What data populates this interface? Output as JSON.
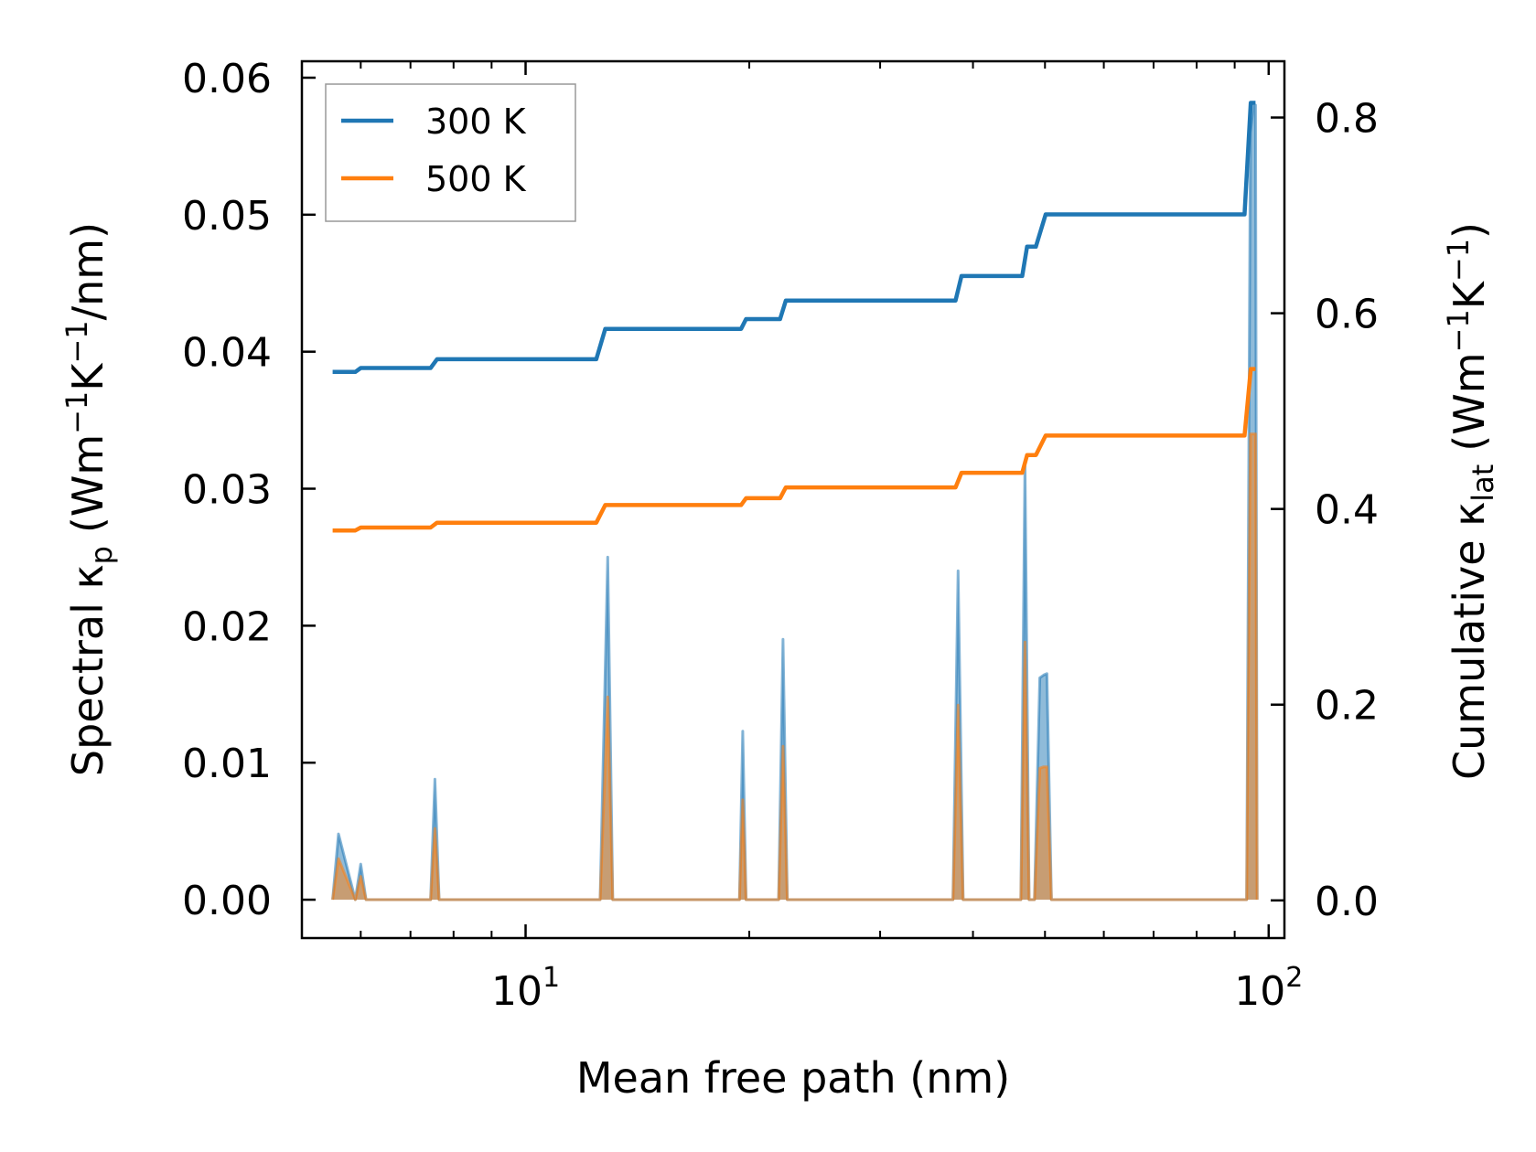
{
  "chart_data": {
    "type": "line",
    "xscale": "log",
    "xlabel": "Mean free path (nm)",
    "ylabel_left": "Spectral κ",
    "ylabel_left_sub": "p",
    "ylabel_left_units": "(Wm",
    "ylabel_left_exp1": "−1",
    "ylabel_left_mid": "K",
    "ylabel_left_exp2": "−1",
    "ylabel_left_tail": "/nm)",
    "ylabel_right": "Cumulative κ",
    "ylabel_right_sub": "lat",
    "ylabel_right_units": "(Wm",
    "ylabel_right_exp1": "−1",
    "ylabel_right_mid": "K",
    "ylabel_right_exp2": "−1",
    "ylabel_right_tail": ")",
    "xlim": [
      5.0,
      105.0
    ],
    "ylim_left": [
      -0.0028,
      0.0612
    ],
    "ylim_right": [
      -0.0385,
      0.8575
    ],
    "xticks": [
      {
        "base": "10",
        "exp": "1",
        "value": 10
      },
      {
        "base": "10",
        "exp": "2",
        "value": 100
      }
    ],
    "yticks_left": [
      "0.00",
      "0.01",
      "0.02",
      "0.03",
      "0.04",
      "0.05",
      "0.06"
    ],
    "yticks_left_values": [
      0.0,
      0.01,
      0.02,
      0.03,
      0.04,
      0.05,
      0.06
    ],
    "yticks_right": [
      "0.0",
      "0.2",
      "0.4",
      "0.6",
      "0.8"
    ],
    "yticks_right_values": [
      0.0,
      0.2,
      0.4,
      0.6,
      0.8
    ],
    "legend": {
      "position": "upper-left",
      "entries": [
        {
          "label": "300 K",
          "color": "#1f77b4"
        },
        {
          "label": "500 K",
          "color": "#ff7f0e"
        }
      ]
    },
    "series": [
      {
        "name": "300 K spectral",
        "axis": "left",
        "style": "fill",
        "color": "#1f77b4",
        "x": [
          5.5,
          5.6,
          5.9,
          6.0,
          6.1,
          7.45,
          7.55,
          7.65,
          12.3,
          12.6,
          12.9,
          13.1,
          19.4,
          19.6,
          19.8,
          21.9,
          22.2,
          22.5,
          37.6,
          38.2,
          38.8,
          46.4,
          47.0,
          47.6,
          48.4,
          49.2,
          49.8,
          50.3,
          51.0,
          93.4,
          94.5,
          95.4,
          96.0,
          96.5
        ],
        "y": [
          0.0,
          0.0048,
          0.0,
          0.0026,
          0.0,
          0.0,
          0.0088,
          0.0,
          0.0,
          0.0,
          0.025,
          0.0,
          0.0,
          0.0123,
          0.0,
          0.0,
          0.019,
          0.0,
          0.0,
          0.024,
          0.0,
          0.0,
          0.032,
          0.0,
          0.0,
          0.0162,
          0.0164,
          0.0165,
          0.0,
          0.0,
          0.056,
          0.058,
          0.058,
          0.0
        ]
      },
      {
        "name": "500 K spectral",
        "axis": "left",
        "style": "fill",
        "color": "#ff7f0e",
        "x": [
          5.5,
          5.6,
          5.9,
          6.0,
          6.1,
          7.45,
          7.55,
          7.65,
          12.3,
          12.6,
          12.9,
          13.1,
          19.4,
          19.6,
          19.8,
          21.9,
          22.2,
          22.5,
          37.6,
          38.2,
          38.8,
          46.4,
          47.0,
          47.6,
          48.4,
          49.2,
          49.8,
          50.3,
          51.0,
          93.4,
          94.5,
          95.4,
          96.0,
          96.5
        ],
        "y": [
          0.0,
          0.003,
          0.0,
          0.0017,
          0.0,
          0.0,
          0.0052,
          0.0,
          0.0,
          0.0,
          0.0148,
          0.0,
          0.0,
          0.0073,
          0.0,
          0.0,
          0.0112,
          0.0,
          0.0,
          0.0142,
          0.0,
          0.0,
          0.0188,
          0.0,
          0.0,
          0.0096,
          0.0097,
          0.0097,
          0.0,
          0.0,
          0.034,
          0.034,
          0.034,
          0.0
        ]
      },
      {
        "name": "300 K",
        "axis": "right",
        "style": "line",
        "color": "#1f77b4",
        "x": [
          5.5,
          5.9,
          6.0,
          7.45,
          7.6,
          12.45,
          12.8,
          19.5,
          19.8,
          22.0,
          22.4,
          37.9,
          38.6,
          46.6,
          47.3,
          48.6,
          50.1,
          92.8,
          94.6,
          96.0
        ],
        "y": [
          0.54,
          0.54,
          0.544,
          0.544,
          0.553,
          0.553,
          0.584,
          0.584,
          0.594,
          0.594,
          0.613,
          0.613,
          0.638,
          0.638,
          0.668,
          0.668,
          0.701,
          0.701,
          0.815,
          0.815
        ]
      },
      {
        "name": "500 K",
        "axis": "right",
        "style": "line",
        "color": "#ff7f0e",
        "x": [
          5.5,
          5.9,
          6.0,
          7.45,
          7.6,
          12.45,
          12.8,
          19.5,
          19.8,
          22.0,
          22.4,
          37.9,
          38.6,
          46.6,
          47.3,
          48.6,
          50.1,
          92.8,
          94.6,
          96.0
        ],
        "y": [
          0.378,
          0.378,
          0.381,
          0.381,
          0.386,
          0.386,
          0.404,
          0.404,
          0.411,
          0.411,
          0.422,
          0.422,
          0.437,
          0.437,
          0.455,
          0.455,
          0.475,
          0.475,
          0.543,
          0.543
        ]
      }
    ]
  }
}
